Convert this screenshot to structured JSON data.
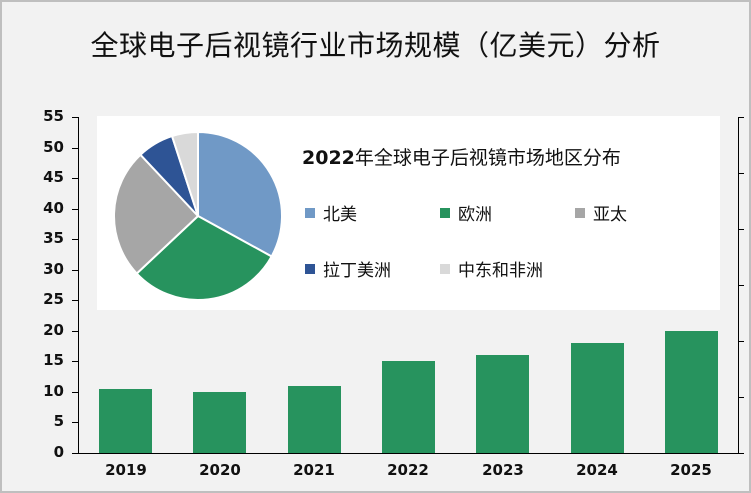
{
  "title": "全球电子后视镜行业市场规模（亿美元）分析",
  "chart_data": [
    {
      "type": "bar",
      "title": "全球电子后视镜行业市场规模（亿美元）分析",
      "xlabel": "",
      "ylabel": "",
      "categories": [
        "2019",
        "2020",
        "2021",
        "2022",
        "2023",
        "2024",
        "2025"
      ],
      "values": [
        10.5,
        10,
        11,
        15,
        16,
        18,
        20
      ],
      "ylim": [
        0,
        55
      ],
      "yticks": [
        "0",
        "5",
        "10",
        "15",
        "20",
        "25",
        "30",
        "35",
        "40",
        "45",
        "50",
        "55"
      ],
      "color": "#27935e",
      "grid": false,
      "secondary_axis": "right axis with unlabeled tick marks"
    },
    {
      "type": "pie",
      "title": "2022年全球电子后视镜市场地区分布",
      "title_year": "2022",
      "title_rest": "年全球电子后视镜市场地区分布",
      "labels": [
        "北美",
        "欧洲",
        "亚太",
        "拉丁美洲",
        "中东和非洲"
      ],
      "values": [
        33,
        30,
        25,
        7,
        5
      ],
      "colors": [
        "#7099c6",
        "#27935e",
        "#a6a6a6",
        "#2e5495",
        "#d9d9d9"
      ],
      "legend_position": "right"
    }
  ]
}
